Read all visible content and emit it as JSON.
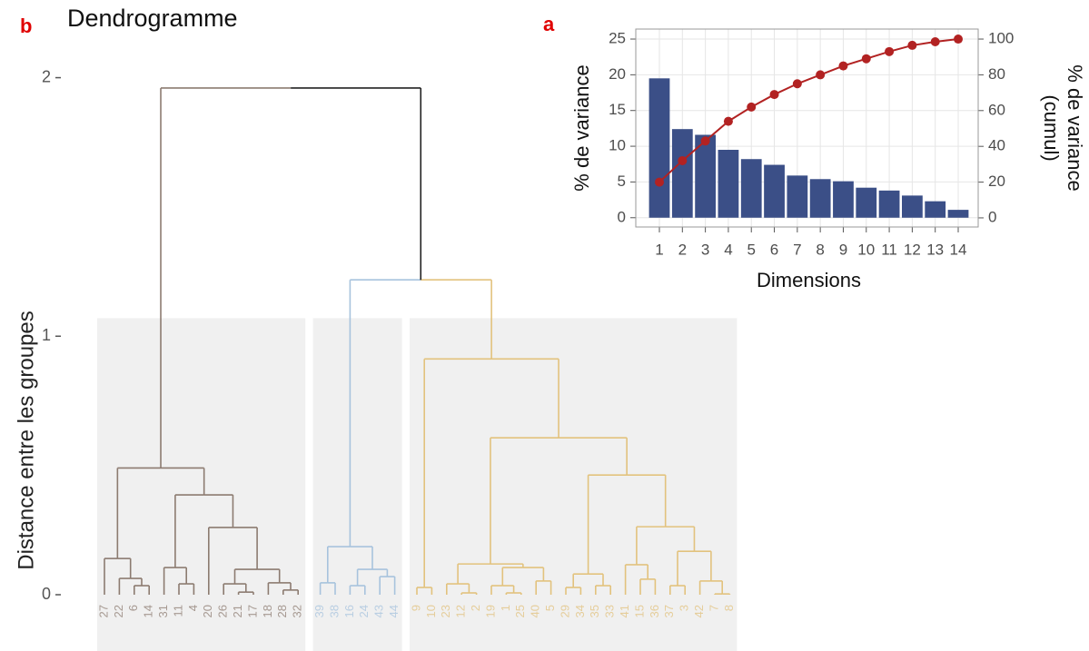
{
  "chart_data": [
    {
      "type": "dendrogram",
      "panel": "b",
      "title": "Dendrogramme",
      "ylabel": "Distance entre les groupes",
      "ylim": [
        0,
        2.16
      ],
      "yticks": [
        0,
        1,
        2
      ],
      "rect_height": 1.07,
      "root": {
        "height": 1.96,
        "children": [
          {
            "color": "#8c7b70",
            "height": 0.49,
            "children": [
              {
                "height": 0.14,
                "children": [
                  "27",
                  {
                    "height": 0.063,
                    "children": [
                      "22",
                      {
                        "height": 0.035,
                        "children": [
                          "6",
                          "14"
                        ]
                      }
                    ]
                  }
                ]
              },
              {
                "height": 0.386,
                "children": [
                  {
                    "height": 0.105,
                    "children": [
                      "31",
                      {
                        "height": 0.042,
                        "children": [
                          "11",
                          "4"
                        ]
                      }
                    ]
                  },
                  {
                    "height": 0.26,
                    "children": [
                      "20",
                      {
                        "height": 0.098,
                        "children": [
                          {
                            "height": 0.042,
                            "children": [
                              "26",
                              {
                                "height": 0.01,
                                "children": [
                                  "21",
                                  "17"
                                ]
                              }
                            ]
                          },
                          {
                            "height": 0.046,
                            "children": [
                              "18",
                              {
                                "height": 0.018,
                                "children": [
                                  "28",
                                  "32"
                                ]
                              }
                            ]
                          }
                        ]
                      }
                    ]
                  }
                ]
              }
            ]
          },
          {
            "color": "#222222",
            "height": 1.218,
            "children": [
              {
                "color": "#a7c3dd",
                "height": 0.186,
                "children": [
                  {
                    "height": 0.046,
                    "children": [
                      "39",
                      "38"
                    ]
                  },
                  {
                    "height": 0.098,
                    "children": [
                      {
                        "height": 0.035,
                        "children": [
                          "16",
                          "24"
                        ]
                      },
                      {
                        "height": 0.07,
                        "children": [
                          "43",
                          "44"
                        ]
                      }
                    ]
                  }
                ]
              },
              {
                "color": "#e2c27d",
                "height": 0.912,
                "children": [
                  {
                    "height": 0.028,
                    "children": [
                      "9",
                      "10"
                    ]
                  },
                  {
                    "height": 0.607,
                    "children": [
                      {
                        "height": 0.119,
                        "children": [
                          {
                            "height": 0.042,
                            "children": [
                              "23",
                              {
                                "height": 0.007,
                                "children": [
                                  "12",
                                  "2"
                                ]
                              }
                            ]
                          },
                          {
                            "height": 0.105,
                            "children": [
                              {
                                "height": 0.035,
                                "children": [
                                  "19",
                                  {
                                    "height": 0.007,
                                    "children": [
                                      "1",
                                      "25"
                                    ]
                                  }
                                ]
                              },
                              {
                                "height": 0.053,
                                "children": [
                                  "40",
                                  "5"
                                ]
                              }
                            ]
                          }
                        ]
                      },
                      {
                        "height": 0.463,
                        "children": [
                          {
                            "height": 0.08,
                            "children": [
                              {
                                "height": 0.028,
                                "children": [
                                  "29",
                                  "34"
                                ]
                              },
                              {
                                "height": 0.035,
                                "children": [
                                  "35",
                                  "33"
                                ]
                              }
                            ]
                          },
                          {
                            "height": 0.263,
                            "children": [
                              {
                                "height": 0.116,
                                "children": [
                                  "41",
                                  {
                                    "height": 0.06,
                                    "children": [
                                      "15",
                                      "36"
                                    ]
                                  }
                                ]
                              },
                              {
                                "height": 0.168,
                                "children": [
                                  {
                                    "height": 0.035,
                                    "children": [
                                      "37",
                                      "3"
                                    ]
                                  },
                                  {
                                    "height": 0.053,
                                    "children": [
                                      "42",
                                      {
                                        "height": 0.003,
                                        "children": [
                                          "7",
                                          "8"
                                        ]
                                      }
                                    ]
                                  }
                                ]
                              }
                            ]
                          }
                        ]
                      }
                    ]
                  }
                ]
              }
            ]
          }
        ]
      }
    },
    {
      "type": "bar",
      "panel": "a",
      "xlabel": "Dimensions",
      "ylabel": "% de variance",
      "y2label": [
        "% de variance",
        "(cumul)"
      ],
      "categories": [
        "1",
        "2",
        "3",
        "4",
        "5",
        "6",
        "7",
        "8",
        "9",
        "10",
        "11",
        "12",
        "13",
        "14"
      ],
      "series": [
        {
          "color": "#3b4f87",
          "values": [
            19.5,
            12.4,
            11.6,
            9.5,
            8.2,
            7.4,
            5.9,
            5.4,
            5.1,
            4.2,
            3.8,
            3.1,
            2.3,
            1.1
          ]
        },
        {
          "color": "#b22222",
          "axis": "y2",
          "values": [
            20,
            32,
            43,
            54,
            62,
            69,
            75,
            80,
            85,
            89,
            93,
            96.5,
            98.5,
            100
          ]
        }
      ],
      "ylim": [
        -1.3,
        26.4
      ],
      "yticks": [
        0,
        5,
        10,
        15,
        20,
        25
      ],
      "y2lim": [
        -5.1,
        105.6
      ],
      "y2ticks": [
        0,
        20,
        40,
        60,
        80,
        100
      ],
      "grid": true
    }
  ]
}
